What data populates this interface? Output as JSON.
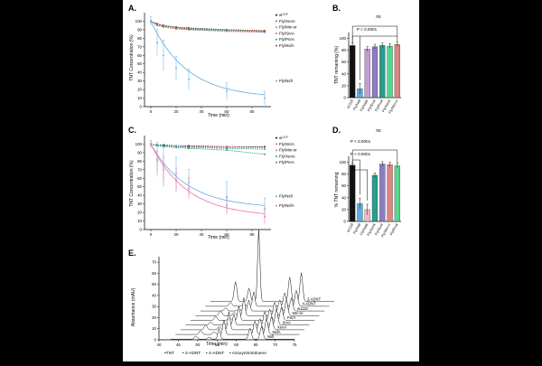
{
  "figure": {
    "panels": {
      "A": {
        "letter": "A."
      },
      "B": {
        "letter": "B."
      },
      "C": {
        "letter": "C."
      },
      "D": {
        "letter": "D."
      },
      "E": {
        "letter": "E."
      }
    }
  },
  "chart_data": [
    {
      "panel": "A",
      "type": "line",
      "xlabel": "Time (min)",
      "ylabel": "TNT Concentration (%)",
      "xlim": [
        -5,
        95
      ],
      "ylim": [
        0,
        110
      ],
      "xticks": [
        0,
        20,
        40,
        60,
        80
      ],
      "yticks": [
        0,
        10,
        20,
        30,
        40,
        50,
        60,
        70,
        80,
        90,
        100
      ],
      "x": [
        0,
        5,
        10,
        20,
        30,
        60,
        90
      ],
      "legend": [
        "w1118",
        "Fly/XenA",
        "Fly/Mm-nr",
        "Fly/SnrA",
        "Fly/PnrA",
        "Fly/NsfA",
        "Fly/NsfI"
      ],
      "series": [
        {
          "name": "w1118",
          "color": "#111111",
          "values": [
            100,
            97,
            95,
            93,
            92,
            90,
            89
          ]
        },
        {
          "name": "Fly/XenA",
          "color": "#2ea043",
          "values": [
            100,
            96,
            94,
            93,
            91,
            90,
            88
          ]
        },
        {
          "name": "Fly/Mm-nr",
          "color": "#e06666",
          "values": [
            100,
            95,
            93,
            91,
            90,
            88,
            87
          ]
        },
        {
          "name": "Fly/SnrA",
          "color": "#8e7cc3",
          "values": [
            100,
            96,
            94,
            92,
            90,
            89,
            87
          ]
        },
        {
          "name": "Fly/PnrA",
          "color": "#2a9d8f",
          "values": [
            100,
            95,
            94,
            92,
            90,
            89,
            88
          ]
        },
        {
          "name": "Fly/NsfA",
          "color": "#c0392b",
          "values": [
            100,
            97,
            95,
            93,
            91,
            90,
            89
          ]
        },
        {
          "name": "Fly/NsfI",
          "color": "#5dade2",
          "values": [
            100,
            75,
            60,
            45,
            32,
            18,
            10
          ],
          "err": [
            5,
            15,
            18,
            14,
            12,
            10,
            8
          ]
        }
      ]
    },
    {
      "panel": "B",
      "type": "bar",
      "ylabel": "TNT remaining (%)",
      "ylim": [
        0,
        110
      ],
      "yticks": [
        0,
        20,
        40,
        60,
        80,
        100
      ],
      "categories": [
        "w1118",
        "Fly/NsfI",
        "Fly/NsfA",
        "Fly/SnrA",
        "Fly/PnrA",
        "Fly/XenA",
        "Fly/Mm-nr"
      ],
      "values": [
        88,
        15,
        82,
        86,
        88,
        87,
        90
      ],
      "colors": [
        "#111111",
        "#5dade2",
        "#c39bd3",
        "#8e7cc3",
        "#2a9d8f",
        "#58d68d",
        "#d98880"
      ],
      "annotations": {
        "sig": "P < 0.0001",
        "ns": "ns"
      }
    },
    {
      "panel": "C",
      "type": "line",
      "xlabel": "Time (min)",
      "ylabel": "TNT Concentration (%)",
      "xlim": [
        -5,
        95
      ],
      "ylim": [
        0,
        110
      ],
      "xticks": [
        0,
        20,
        40,
        60,
        80
      ],
      "yticks": [
        0,
        10,
        20,
        30,
        40,
        50,
        60,
        70,
        80,
        90,
        100
      ],
      "x": [
        0,
        5,
        10,
        20,
        30,
        60,
        90
      ],
      "legend": [
        "w1118",
        "Fly/SnrA",
        "Fly/Mm-nr",
        "Fly/XenA",
        "Fly/PnrA",
        "Fly/NsfI",
        "Fly/NsfA"
      ],
      "series": [
        {
          "name": "w1118",
          "color": "#111111",
          "values": [
            100,
            99,
            99,
            98,
            98,
            97,
            97
          ]
        },
        {
          "name": "Fly/SnrA",
          "color": "#e06666",
          "values": [
            100,
            99,
            98,
            98,
            97,
            97,
            96
          ]
        },
        {
          "name": "Fly/Mm-nr",
          "color": "#8e7cc3",
          "values": [
            100,
            99,
            98,
            98,
            97,
            96,
            96
          ]
        },
        {
          "name": "Fly/XenA",
          "color": "#2ea043",
          "values": [
            100,
            98,
            97,
            96,
            95,
            93,
            88
          ]
        },
        {
          "name": "Fly/PnrA",
          "color": "#2a9d8f",
          "values": [
            100,
            99,
            98,
            97,
            96,
            95,
            94
          ]
        },
        {
          "name": "Fly/NsfI",
          "color": "#5dade2",
          "values": [
            100,
            82,
            75,
            65,
            55,
            38,
            25
          ],
          "err": [
            4,
            20,
            25,
            20,
            15,
            18,
            12
          ]
        },
        {
          "name": "Fly/NsfA",
          "color": "#f06fa0",
          "values": [
            100,
            80,
            70,
            58,
            48,
            28,
            15
          ],
          "err": [
            4,
            12,
            15,
            14,
            12,
            10,
            8
          ]
        }
      ]
    },
    {
      "panel": "D",
      "type": "bar",
      "ylabel": "% TNT remaining",
      "ylim": [
        0,
        110
      ],
      "yticks": [
        0,
        20,
        40,
        60,
        80,
        100
      ],
      "categories": [
        "w1118",
        "Fly/NsfI",
        "Fly/NsfA",
        "Fly/XenA",
        "Fly/SnrA",
        "Fly/Mm-nr",
        "Fly/PnrA"
      ],
      "values": [
        95,
        30,
        20,
        78,
        97,
        96,
        94
      ],
      "colors": [
        "#111111",
        "#5dade2",
        "#f5b7c5",
        "#2a9d8f",
        "#8e7cc3",
        "#d98880",
        "#58d68d"
      ],
      "annotations": {
        "sig1": "P < 0.0001",
        "sig2": "P < 0.0001",
        "ns": "ns"
      }
    },
    {
      "panel": "E",
      "type": "line",
      "xlabel": "Time (min)",
      "ylabel": "Absorbance (mAU)",
      "xticks": [
        40,
        45,
        50,
        55,
        60,
        65,
        70,
        75
      ],
      "yticks": [
        0,
        10,
        20,
        30,
        40,
        50,
        60,
        70
      ],
      "trace_labels": [
        "NsfI",
        "NsfA",
        "XenA",
        "SnrA",
        "PnrA",
        "Mm-nr",
        "w1118",
        "4-ADNT",
        "2-ADNT"
      ],
      "legend": [
        "•TNT",
        "• 2-ADNT",
        "• 4-ADNT",
        "• Azoxynitrotoluene"
      ]
    }
  ]
}
